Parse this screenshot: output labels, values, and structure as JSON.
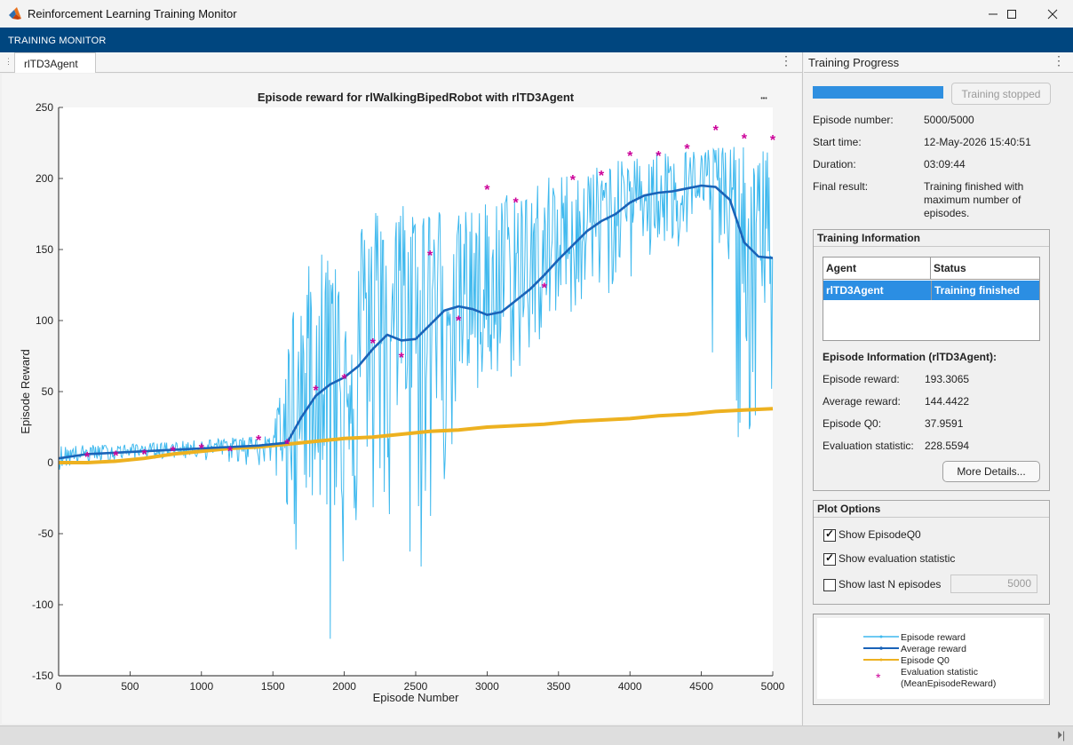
{
  "window": {
    "title": "Reinforcement Learning Training Monitor",
    "minimize_icon": "minimize-icon",
    "maximize_icon": "maximize-icon",
    "close_icon": "close-icon"
  },
  "banner": {
    "label": "TRAINING MONITOR"
  },
  "doc_tab": {
    "label": "rlTD3Agent"
  },
  "right_panel": {
    "title": "Training Progress",
    "progress_fraction": 1.0,
    "stop_button": "Training stopped",
    "episode_number_label": "Episode number:",
    "episode_number": "5000/5000",
    "start_time_label": "Start time:",
    "start_time": "12-May-2026 15:40:51",
    "duration_label": "Duration:",
    "duration": "03:09:44",
    "final_result_label": "Final result:",
    "final_result_lines": [
      "Training finished with",
      "maximum number of",
      "episodes."
    ]
  },
  "training_info": {
    "title": "Training Information",
    "col_agent": "Agent",
    "col_status": "Status",
    "row_agent": "rlTD3Agent",
    "row_status": "Training finished",
    "episode_info_title": "Episode Information (rlTD3Agent):",
    "episode_reward_label": "Episode reward:",
    "episode_reward": "193.3065",
    "average_reward_label": "Average reward:",
    "average_reward": "144.4422",
    "episode_q0_label": "Episode Q0:",
    "episode_q0": "37.9591",
    "eval_stat_label": "Evaluation statistic:",
    "eval_stat": "228.5594",
    "more_details": "More Details..."
  },
  "plot_options": {
    "title": "Plot Options",
    "show_q0": {
      "label": "Show EpisodeQ0",
      "checked": true
    },
    "show_eval": {
      "label": "Show evaluation statistic",
      "checked": true
    },
    "show_last_n": {
      "label": "Show last N episodes",
      "checked": false
    },
    "last_n_value": "5000"
  },
  "legend": {
    "episode_reward": "Episode reward",
    "average_reward": "Average reward",
    "episode_q0": "Episode Q0",
    "eval_stat_line1": "Evaluation statistic",
    "eval_stat_line2": "(MeanEpisodeReward)"
  },
  "colors": {
    "episode_reward": "#3fb9ee",
    "average_reward": "#1a63b8",
    "episode_q0": "#edb120",
    "eval_stat": "#cc0099",
    "banner": "#00467f",
    "selection": "#2b8ee3"
  },
  "chart_data": {
    "type": "line",
    "title": "Episode reward for rlWalkingBipedRobot with rlTD3Agent",
    "xlabel": "Episode Number",
    "ylabel": "Episode Reward",
    "xlim": [
      0,
      5000
    ],
    "ylim": [
      -150,
      250
    ],
    "xticks": [
      0,
      500,
      1000,
      1500,
      2000,
      2500,
      3000,
      3500,
      4000,
      4500,
      5000
    ],
    "yticks": [
      -150,
      -100,
      -50,
      0,
      50,
      100,
      150,
      200,
      250
    ],
    "grid": false,
    "series": [
      {
        "name": "Average reward",
        "x": [
          0,
          200,
          400,
          600,
          800,
          1000,
          1200,
          1400,
          1600,
          1700,
          1800,
          1900,
          2000,
          2100,
          2200,
          2300,
          2400,
          2500,
          2600,
          2700,
          2800,
          2900,
          3000,
          3100,
          3200,
          3300,
          3400,
          3500,
          3600,
          3700,
          3800,
          3900,
          4000,
          4100,
          4200,
          4300,
          4400,
          4500,
          4600,
          4700,
          4800,
          4900,
          5000
        ],
        "values": [
          3,
          6,
          7,
          8,
          9,
          10,
          11,
          12,
          14,
          32,
          47,
          55,
          60,
          68,
          80,
          90,
          86,
          87,
          97,
          107,
          110,
          108,
          104,
          106,
          114,
          122,
          132,
          143,
          153,
          163,
          170,
          175,
          183,
          188,
          190,
          191,
          193,
          195,
          194,
          185,
          155,
          145,
          144
        ]
      },
      {
        "name": "Episode Q0",
        "x": [
          0,
          200,
          400,
          600,
          800,
          1000,
          1200,
          1400,
          1600,
          1800,
          2000,
          2200,
          2400,
          2600,
          2800,
          3000,
          3200,
          3400,
          3600,
          3800,
          4000,
          4200,
          4400,
          4600,
          4800,
          5000
        ],
        "values": [
          0,
          0,
          1,
          3,
          6,
          8,
          10,
          11,
          13,
          15,
          17,
          18,
          20,
          22,
          23,
          25,
          26,
          27,
          29,
          30,
          31,
          33,
          34,
          36,
          37,
          38
        ]
      },
      {
        "name": "Evaluation statistic",
        "x": [
          200,
          400,
          600,
          800,
          1000,
          1200,
          1400,
          1600,
          1800,
          2000,
          2200,
          2400,
          2600,
          2800,
          3000,
          3200,
          3400,
          3600,
          3800,
          4000,
          4200,
          4400,
          4600,
          4800,
          5000
        ],
        "values": [
          5,
          6,
          7,
          9,
          11,
          9,
          17,
          14,
          52,
          60,
          85,
          75,
          147,
          101,
          193,
          184,
          124,
          200,
          203,
          217,
          217,
          222,
          235,
          229,
          228
        ]
      },
      {
        "name": "Episode reward",
        "envelope": {
          "x": [
            0,
            500,
            1000,
            1500,
            1650,
            1800,
            2000,
            2200,
            2500,
            2800,
            3000,
            3300,
            3600,
            3900,
            4200,
            4500,
            4600,
            4800,
            5000
          ],
          "min": [
            -5,
            3,
            2,
            -5,
            -65,
            -20,
            -80,
            -45,
            -102,
            20,
            40,
            70,
            105,
            120,
            140,
            150,
            15,
            15,
            18
          ],
          "max": [
            12,
            13,
            16,
            20,
            115,
            150,
            165,
            180,
            190,
            175,
            185,
            200,
            205,
            212,
            220,
            220,
            225,
            222,
            220
          ]
        },
        "min_value": -124,
        "min_x": 1900
      }
    ]
  }
}
